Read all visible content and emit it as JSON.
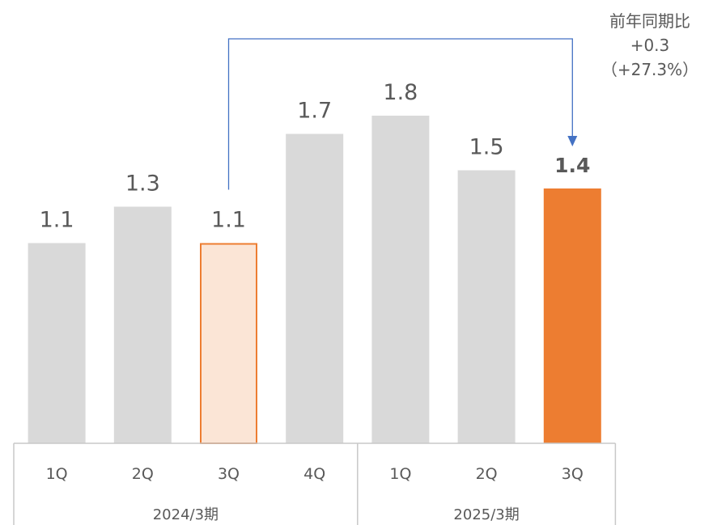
{
  "chart_data": {
    "type": "bar",
    "categories": [
      "1Q",
      "2Q",
      "3Q",
      "4Q",
      "1Q",
      "2Q",
      "3Q"
    ],
    "groups": [
      {
        "label": "2024/3期",
        "span": 4
      },
      {
        "label": "2025/3期",
        "span": 3
      }
    ],
    "series": [
      {
        "values": [
          1.1,
          1.3,
          1.1,
          1.7,
          1.8,
          1.5,
          1.4
        ]
      }
    ],
    "value_labels": [
      "1.1",
      "1.3",
      "1.1",
      "1.7",
      "1.8",
      "1.5",
      "1.4"
    ],
    "ylim": [
      0,
      2.0
    ],
    "grid": false,
    "colors": {
      "default_bar": "#d9d9d9",
      "compare_bar_fill": "#fbe5d6",
      "compare_bar_stroke": "#ed7d31",
      "current_bar": "#ed7d31",
      "connector": "#4472c4",
      "text": "#595959",
      "axis_lines": "#c8c8c8"
    },
    "highlight": {
      "compare_index": 2,
      "current_index": 6
    },
    "annotation": {
      "lines": [
        "前年同期比",
        "+0.3",
        "（+27.3%）"
      ],
      "from_index": 2,
      "to_index": 6
    }
  }
}
